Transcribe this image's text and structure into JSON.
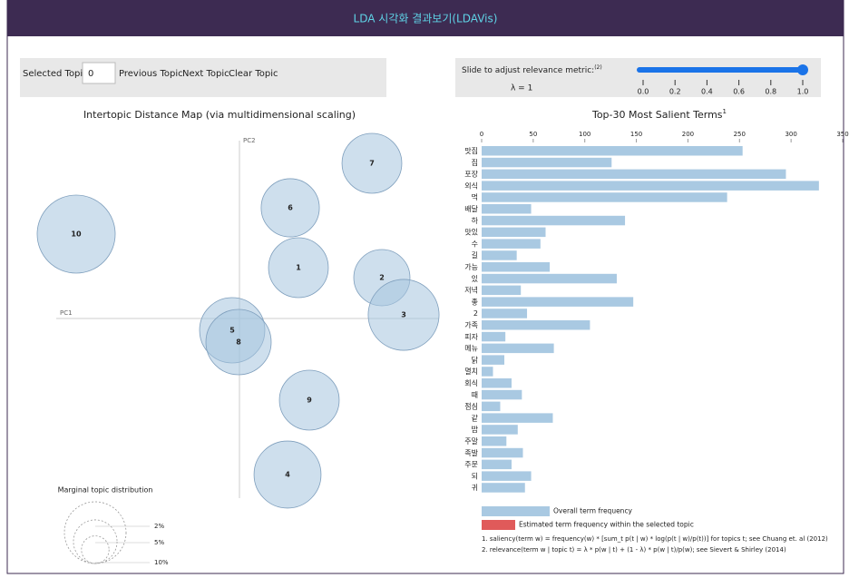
{
  "header": {
    "title": "LDA 시각화 결과보기(LDAVis)"
  },
  "topic_controls": {
    "selected_label": "Selected Topic:",
    "selected_value": "0",
    "buttons": [
      "Previous Topic",
      "Next Topic",
      "Clear Topic"
    ]
  },
  "relevance_controls": {
    "label": "Slide to adjust relevance metric:",
    "label_note": "(2)",
    "lambda_label": "λ = 1",
    "value": 1,
    "xlim": [
      0,
      1
    ],
    "xticks": [
      {
        "value": 0,
        "label": "0.0"
      },
      {
        "value": 0.2,
        "label": "0.2"
      },
      {
        "value": 0.4,
        "label": "0.4"
      },
      {
        "value": 0.6,
        "label": "0.6"
      },
      {
        "value": 0.8,
        "label": "0.8"
      },
      {
        "value": 1,
        "label": "1.0"
      }
    ]
  },
  "topic_map": {
    "type": "scatter",
    "title": "Intertopic Distance Map (via multidimensional scaling)",
    "x_label": "PC1",
    "y_label": "PC2",
    "xlim": [
      -0.22,
      0.22
    ],
    "ylim": [
      -0.2,
      0.2
    ],
    "topics": [
      "1",
      "2",
      "3",
      "4",
      "5",
      "6",
      "7",
      "8",
      "9",
      "10"
    ],
    "pc1": [
      0.065,
      0.157,
      0.181,
      0.053,
      -0.008,
      0.056,
      0.146,
      -0.001,
      0.077,
      -0.18
    ],
    "pc2": [
      0.056,
      0.045,
      0.004,
      -0.172,
      -0.013,
      0.122,
      0.171,
      -0.026,
      -0.09,
      0.093
    ],
    "marginal": [
      9.4,
      8.3,
      13.2,
      11.8,
      11.2,
      8.9,
      9.4,
      11.2,
      9.4,
      16.0
    ],
    "marginal_title": "Marginal topic distribution",
    "marginal_ticks": [
      {
        "value": 2,
        "label": "2%"
      },
      {
        "value": 5,
        "label": "5%"
      },
      {
        "value": 10,
        "label": "10%"
      }
    ]
  },
  "terms_chart": {
    "type": "bar",
    "title": "Top-30 Most Salient Terms",
    "title_note": "1",
    "categories": [
      "맛집",
      "집",
      "포장",
      "외식",
      "먹",
      "배달",
      "하",
      "맛있",
      "수",
      "길",
      "가능",
      "있",
      "저녁",
      "좋",
      "2",
      "가족",
      "피자",
      "메뉴",
      "닭",
      "멸치",
      "회식",
      "때",
      "점심",
      "같",
      "밥",
      "주말",
      "족발",
      "주문",
      "되",
      "귀"
    ],
    "values": [
      253,
      126,
      295,
      327,
      238,
      48,
      139,
      62,
      57,
      34,
      66,
      131,
      38,
      147,
      44,
      105,
      23,
      70,
      22,
      11,
      29,
      39,
      18,
      69,
      35,
      24,
      40,
      29,
      48,
      42
    ],
    "color": "#a9c9e2",
    "xlim": [
      0,
      350
    ],
    "xticks": [
      0,
      50,
      100,
      150,
      200,
      250,
      300,
      350
    ],
    "legend": [
      {
        "name": "Overall term frequency",
        "color": "#a9c9e2"
      },
      {
        "name": "Estimated term frequency within the selected topic",
        "color": "#e05a5a"
      }
    ],
    "footnotes": [
      "1. saliency(term w) = frequency(w) * [sum_t p(t | w) * log(p(t | w)/p(t))] for topics t; see Chuang et. al (2012)",
      "2. relevance(term w | topic t) = λ * p(w | t) + (1 - λ) * p(w | t)/p(w); see Sievert & Shirley (2014)"
    ]
  }
}
